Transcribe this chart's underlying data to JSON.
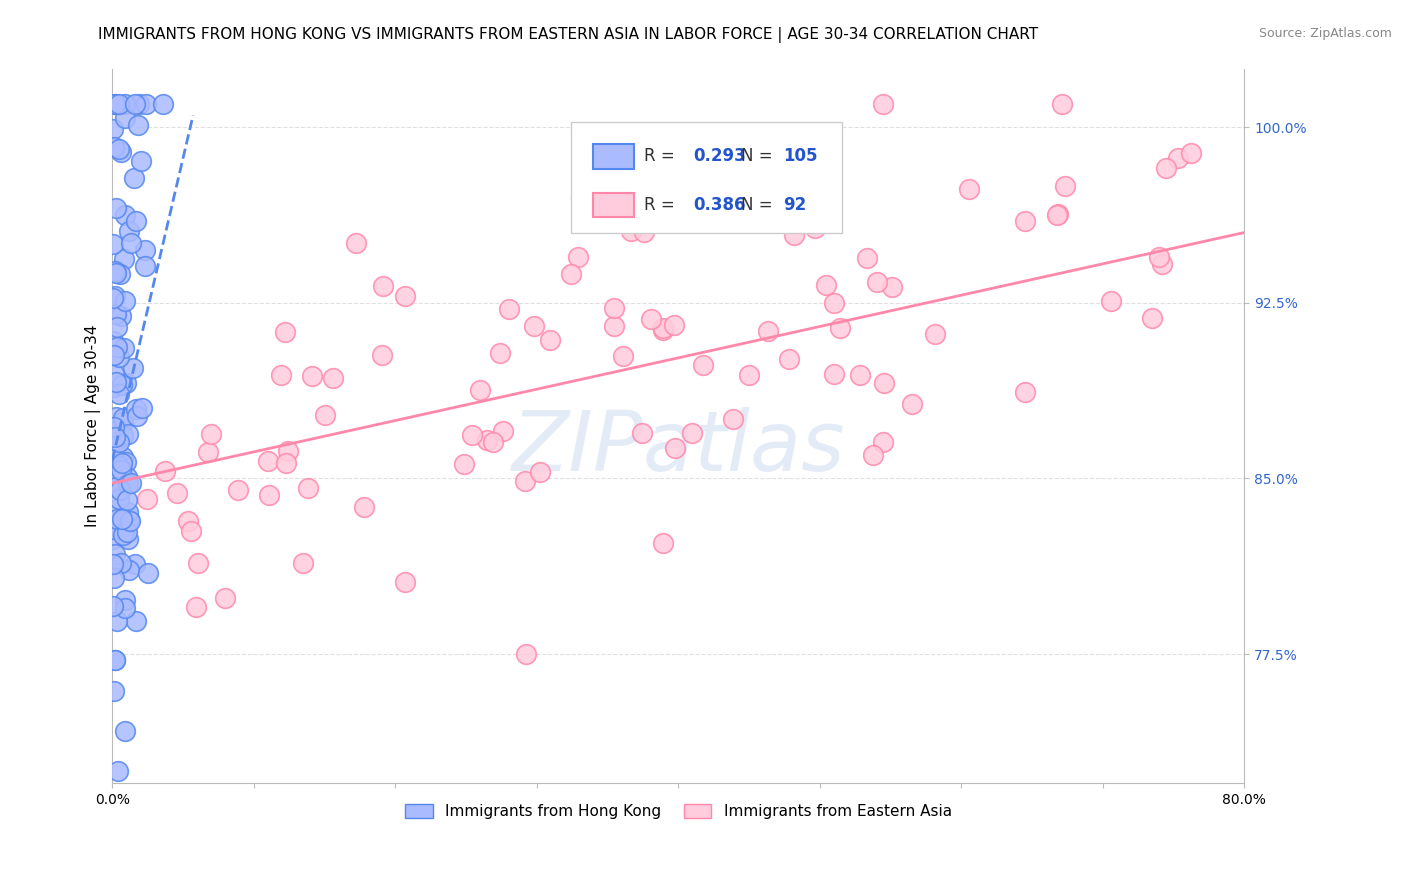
{
  "title": "IMMIGRANTS FROM HONG KONG VS IMMIGRANTS FROM EASTERN ASIA IN LABOR FORCE | AGE 30-34 CORRELATION CHART",
  "source": "Source: ZipAtlas.com",
  "ylabel": "In Labor Force | Age 30-34",
  "xlim": [
    0.0,
    0.8
  ],
  "ylim": [
    0.72,
    1.025
  ],
  "xtick_pos": [
    0.0,
    0.1,
    0.2,
    0.3,
    0.4,
    0.5,
    0.6,
    0.7,
    0.8
  ],
  "xticklabels": [
    "0.0%",
    "",
    "",
    "",
    "",
    "",
    "",
    "",
    "80.0%"
  ],
  "ytick_pos": [
    0.775,
    0.85,
    0.925,
    1.0
  ],
  "ytick_labels": [
    "77.5%",
    "85.0%",
    "92.5%",
    "100.0%"
  ],
  "hk_R": 0.293,
  "hk_N": 105,
  "ea_R": 0.386,
  "ea_N": 92,
  "hk_color": "#5588ee",
  "hk_color_fill": "#aabbff",
  "ea_color": "#ff88aa",
  "ea_color_fill": "#ffccdd",
  "legend_label_hk": "Immigrants from Hong Kong",
  "legend_label_ea": "Immigrants from Eastern Asia",
  "hk_line_x0": 0.0,
  "hk_line_x1": 0.057,
  "hk_line_y0": 0.858,
  "hk_line_y1": 1.005,
  "ea_line_x0": 0.0,
  "ea_line_x1": 0.8,
  "ea_line_y0": 0.848,
  "ea_line_y1": 0.955,
  "background_color": "#ffffff",
  "grid_color": "#e0e0e0",
  "title_fontsize": 11,
  "ylabel_fontsize": 11,
  "tick_fontsize": 10,
  "source_fontsize": 9,
  "legend_r_color": "#2255cc",
  "legend_n_color": "#2255cc",
  "watermark_color": "#c8d8f0",
  "watermark_alpha": 0.5,
  "right_tick_color": "#3366cc"
}
